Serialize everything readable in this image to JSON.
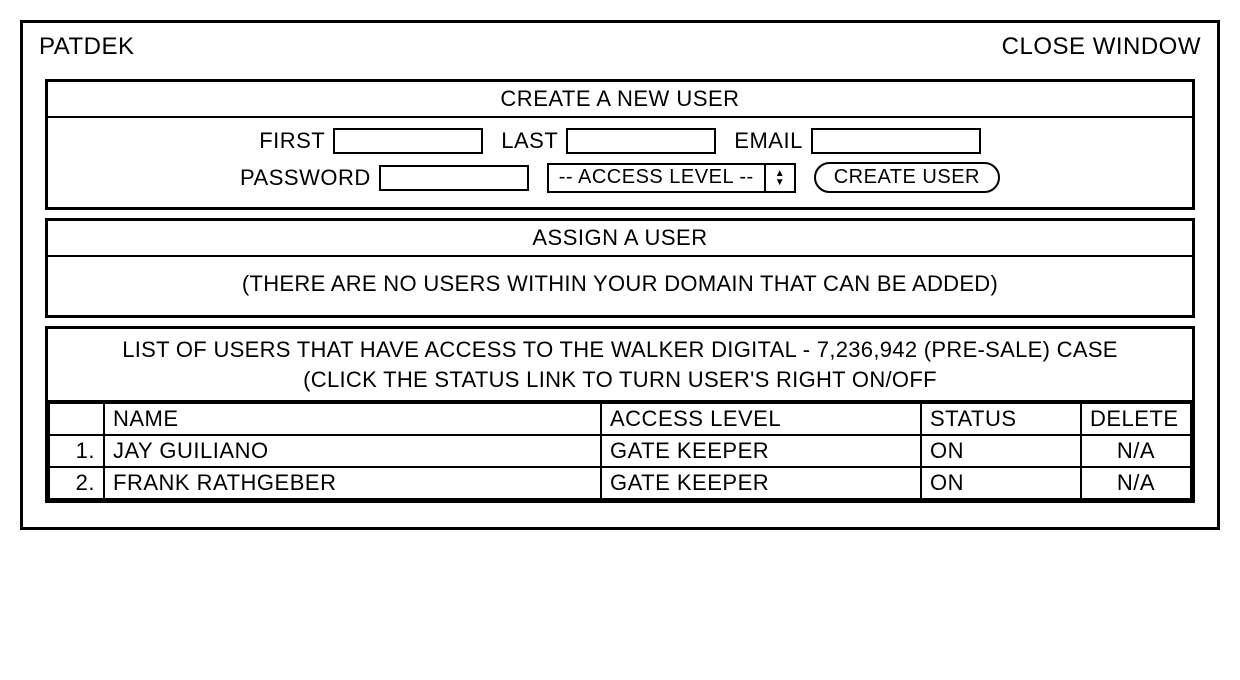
{
  "titlebar": {
    "app_name": "PATDEK",
    "close_label": "CLOSE WINDOW"
  },
  "create_user": {
    "header": "CREATE A NEW USER",
    "first_label": "FIRST",
    "first_value": "",
    "last_label": "LAST",
    "last_value": "",
    "email_label": "EMAIL",
    "email_value": "",
    "password_label": "PASSWORD",
    "password_value": "",
    "access_level_display": "-- ACCESS LEVEL --",
    "create_button_label": "CREATE USER"
  },
  "assign_user": {
    "header": "ASSIGN A USER",
    "body": "(THERE ARE NO USERS WITHIN YOUR DOMAIN THAT CAN BE ADDED)"
  },
  "user_list": {
    "header_line1": "LIST OF USERS THAT HAVE ACCESS TO THE WALKER DIGITAL - 7,236,942 (PRE-SALE) CASE",
    "header_line2": "(CLICK THE STATUS LINK TO TURN USER'S RIGHT ON/OFF",
    "columns": {
      "idx": "",
      "name": "NAME",
      "access_level": "ACCESS LEVEL",
      "status": "STATUS",
      "delete": "DELETE"
    },
    "rows": [
      {
        "idx": "1.",
        "name": "JAY GUILIANO",
        "access_level": "GATE KEEPER",
        "status": "ON",
        "delete": "N/A"
      },
      {
        "idx": "2.",
        "name": "FRANK RATHGEBER",
        "access_level": "GATE KEEPER",
        "status": "ON",
        "delete": "N/A"
      }
    ]
  },
  "style": {
    "border_color": "#000000",
    "background_color": "#ffffff",
    "font_family": "Arial, Helvetica, sans-serif"
  }
}
